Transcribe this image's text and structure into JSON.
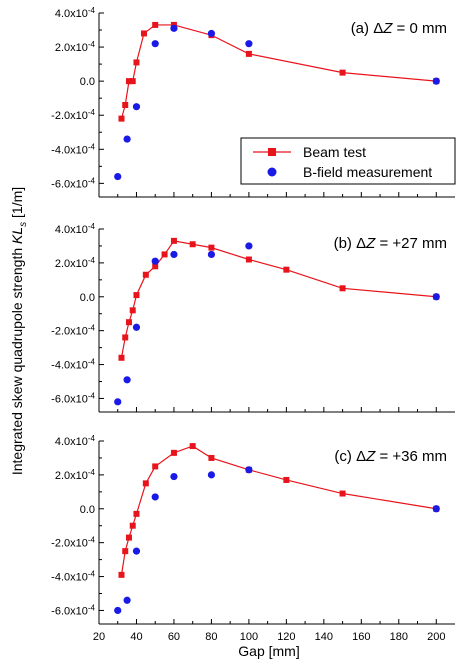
{
  "ylabel": "Integrated skew quadrupole strength KLs [1/m]",
  "ylabel_parts": {
    "main": "Integrated skew quadrupole strength ",
    "kl": "KL",
    "sub": "s",
    "unit": " [1/m]"
  },
  "xlabel": "Gap [mm]",
  "colors": {
    "beam": "#e8141c",
    "bfield": "#1a1ae6",
    "axis": "#000000"
  },
  "legend": {
    "beam_label": "Beam test",
    "bfield_label": "B-field measurement"
  },
  "chart_data": [
    {
      "type": "line",
      "panel_label": {
        "prefix": "(a) ",
        "delta": "Δ",
        "var": "Z",
        "rest": " = 0 mm"
      },
      "xlim": [
        20,
        210
      ],
      "ylim": [
        -0.00068,
        0.0004
      ],
      "xticks": [
        20,
        40,
        60,
        80,
        100,
        120,
        140,
        160,
        180,
        200
      ],
      "yticks": [
        0.0004,
        0.0002,
        0,
        -0.0002,
        -0.0004,
        -0.0006
      ],
      "ytick_labels": [
        "4.0x10-4",
        "2.0x10-4",
        "0.0",
        "-2.0x10-4",
        "-4.0x10-4",
        "-6.0x10-4"
      ],
      "legend_position": "lower-right",
      "series": [
        {
          "name": "Beam test",
          "marker": "square",
          "line": true,
          "x": [
            32,
            34,
            36,
            38,
            40,
            44,
            50,
            60,
            80,
            100,
            150,
            200
          ],
          "y": [
            -0.00022,
            -0.00014,
            0.0,
            0.0,
            0.00011,
            0.00028,
            0.00033,
            0.00033,
            0.00027,
            0.00016,
            5e-05,
            0.0
          ]
        },
        {
          "name": "B-field measurement",
          "marker": "circle",
          "line": false,
          "x": [
            30,
            35,
            40,
            50,
            60,
            80,
            100,
            200
          ],
          "y": [
            -0.00056,
            -0.00034,
            -0.00015,
            0.00022,
            0.00031,
            0.00028,
            0.00022,
            0.0
          ]
        }
      ]
    },
    {
      "type": "line",
      "panel_label": {
        "prefix": "(b) ",
        "delta": "Δ",
        "var": "Z",
        "rest": " = +27 mm"
      },
      "xlim": [
        20,
        210
      ],
      "ylim": [
        -0.00068,
        0.0004
      ],
      "xticks": [
        20,
        40,
        60,
        80,
        100,
        120,
        140,
        160,
        180,
        200
      ],
      "yticks": [
        0.0004,
        0.0002,
        0,
        -0.0002,
        -0.0004,
        -0.0006
      ],
      "ytick_labels": [
        "4.0x10-4",
        "2.0x10-4",
        "0.0",
        "-2.0x10-4",
        "-4.0x10-4",
        "-6.0x10-4"
      ],
      "series": [
        {
          "name": "Beam test",
          "marker": "square",
          "line": true,
          "x": [
            32,
            34,
            36,
            38,
            40,
            45,
            50,
            55,
            60,
            70,
            80,
            100,
            120,
            150,
            200
          ],
          "y": [
            -0.00036,
            -0.00024,
            -0.00015,
            -8e-05,
            1e-05,
            0.00013,
            0.00018,
            0.00025,
            0.00033,
            0.00031,
            0.00029,
            0.00022,
            0.00016,
            5e-05,
            0.0
          ]
        },
        {
          "name": "B-field measurement",
          "marker": "circle",
          "line": false,
          "x": [
            30,
            35,
            40,
            50,
            60,
            80,
            100,
            200
          ],
          "y": [
            -0.00062,
            -0.00049,
            -0.00018,
            0.00021,
            0.00025,
            0.00025,
            0.0003,
            0.0
          ]
        }
      ]
    },
    {
      "type": "line",
      "panel_label": {
        "prefix": "(c) ",
        "delta": "Δ",
        "var": "Z",
        "rest": " = +36 mm"
      },
      "xlim": [
        20,
        210
      ],
      "ylim": [
        -0.00068,
        0.0004
      ],
      "xticks": [
        20,
        40,
        60,
        80,
        100,
        120,
        140,
        160,
        180,
        200
      ],
      "xtick_labels": [
        "20",
        "40",
        "60",
        "80",
        "100",
        "120",
        "140",
        "160",
        "180",
        "200"
      ],
      "yticks": [
        0.0004,
        0.0002,
        0,
        -0.0002,
        -0.0004,
        -0.0006
      ],
      "ytick_labels": [
        "4.0x10-4",
        "2.0x10-4",
        "0.0",
        "-2.0x10-4",
        "-4.0x10-4",
        "-6.0x10-4"
      ],
      "series": [
        {
          "name": "Beam test",
          "marker": "square",
          "line": true,
          "x": [
            32,
            34,
            36,
            38,
            40,
            45,
            50,
            60,
            70,
            80,
            100,
            120,
            150,
            200
          ],
          "y": [
            -0.00039,
            -0.00025,
            -0.00017,
            -0.0001,
            -3e-05,
            0.00015,
            0.00025,
            0.00033,
            0.00037,
            0.0003,
            0.00023,
            0.00017,
            9e-05,
            0.0
          ]
        },
        {
          "name": "B-field measurement",
          "marker": "circle",
          "line": false,
          "x": [
            30,
            35,
            40,
            50,
            60,
            80,
            100,
            200
          ],
          "y": [
            -0.0006,
            -0.00054,
            -0.00025,
            7e-05,
            0.00019,
            0.0002,
            0.00023,
            0.0
          ]
        }
      ]
    }
  ]
}
